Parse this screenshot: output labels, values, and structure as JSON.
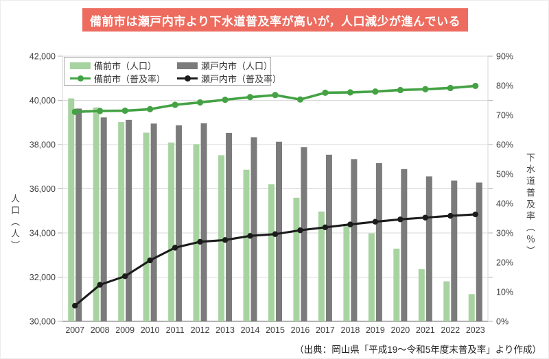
{
  "title_banner": {
    "text": "備前市は瀬戸内市より下水道普及率が高いが，人口減少が進んでいる",
    "bg_color": "#ed6c5f",
    "text_color": "#ffffff"
  },
  "source_note": "（出典：岡山県「平成19～令和5年度末普及率」より作成）",
  "colors": {
    "grid": "#d9d9d9",
    "axis_bottom": "#9b9b9b",
    "tick_mark": "#b8b8b8",
    "tick_text": "#3c3c3c"
  },
  "chart_data": {
    "type": "combo-bar-line",
    "categories": [
      "2007",
      "2008",
      "2009",
      "2010",
      "2011",
      "2012",
      "2013",
      "2014",
      "2015",
      "2016",
      "2017",
      "2018",
      "2019",
      "2020",
      "2021",
      "2022",
      "2023"
    ],
    "series": [
      {
        "name": "備前市（人口）",
        "type": "bar",
        "axis": "left",
        "color": "#a7d3a0",
        "values": [
          40090,
          39680,
          39020,
          38540,
          38090,
          38020,
          37520,
          36860,
          36200,
          35590,
          34970,
          34400,
          33980,
          33290,
          32360,
          31810,
          31230
        ]
      },
      {
        "name": "瀬戸内市（人口）",
        "type": "bar",
        "axis": "left",
        "color": "#7b7b7b",
        "values": [
          39630,
          39230,
          39120,
          38950,
          38870,
          38960,
          38530,
          38330,
          38130,
          37880,
          37540,
          37340,
          37160,
          36890,
          36560,
          36370,
          36280
        ]
      },
      {
        "name": "備前市（普及率）",
        "type": "line",
        "axis": "right",
        "color": "#44a244",
        "values": [
          71.1,
          71.4,
          71.5,
          72.0,
          73.5,
          74.3,
          75.2,
          76.1,
          76.8,
          75.3,
          77.6,
          77.7,
          78.0,
          78.5,
          78.8,
          79.2,
          79.9
        ]
      },
      {
        "name": "瀬戸内市（普及率）",
        "type": "line",
        "axis": "right",
        "color": "#1b1b1b",
        "values": [
          5.3,
          12.4,
          15.3,
          20.7,
          25.0,
          27.0,
          27.6,
          29.0,
          29.6,
          30.9,
          31.9,
          32.9,
          33.8,
          34.6,
          35.2,
          35.8,
          36.3
        ]
      }
    ],
    "left_axis": {
      "label": "人口（人）",
      "min": 30000,
      "max": 42000,
      "step": 2000,
      "format": "thousands"
    },
    "right_axis": {
      "label": "下水道普及率（％）",
      "min": 0,
      "max": 90,
      "step": 10,
      "format": "percent"
    },
    "grid": true,
    "legend_position": "top-left"
  }
}
